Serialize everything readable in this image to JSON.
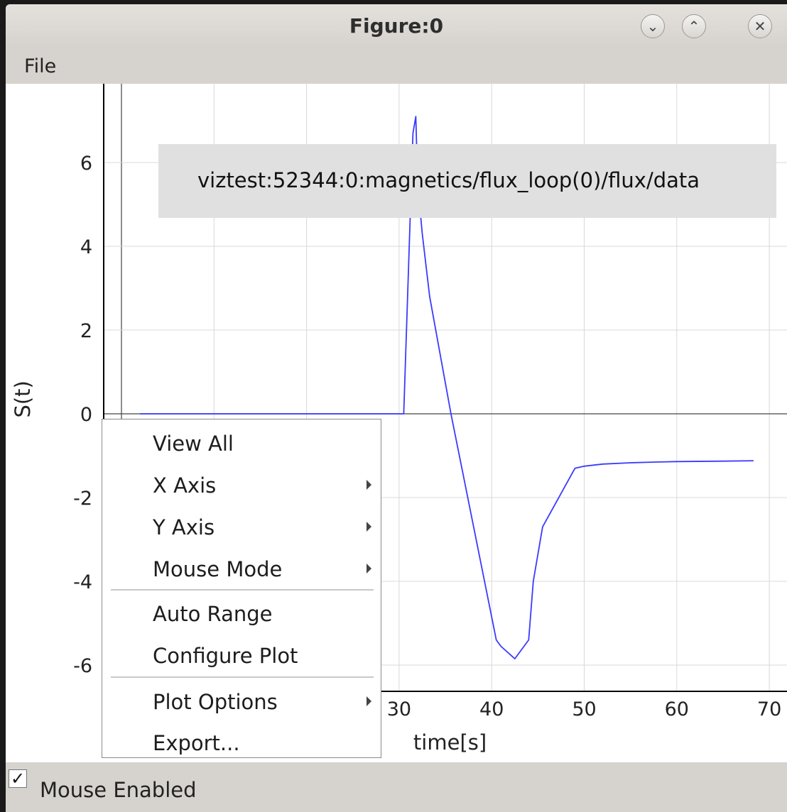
{
  "window": {
    "title": "Figure:0"
  },
  "title_buttons": {
    "minimize_glyph": "⌄",
    "maximize_glyph": "⌃",
    "close_glyph": "✕"
  },
  "menubar": {
    "file": "File"
  },
  "legend": {
    "entry": "viztest:52344:0:magnetics/flux_loop(0)/flux/data"
  },
  "context_menu": {
    "items": [
      {
        "label": "View All",
        "submenu": false
      },
      {
        "label": "X Axis",
        "submenu": true
      },
      {
        "label": "Y Axis",
        "submenu": true
      },
      {
        "label": "Mouse Mode",
        "submenu": true
      },
      {
        "label": "Auto Range",
        "submenu": false
      },
      {
        "label": "Configure Plot",
        "submenu": false
      },
      {
        "label": "Plot Options",
        "submenu": true
      },
      {
        "label": "Export...",
        "submenu": false
      }
    ]
  },
  "status": {
    "mouse_enabled_label": "Mouse Enabled",
    "mouse_enabled": true,
    "check_glyph": "✓"
  },
  "colors": {
    "line": "#3a3aff",
    "grid": "#d8d8d8",
    "axis": "#000000",
    "legend_bg": "#e0e0e0"
  },
  "chart_data": {
    "type": "line",
    "xlabel": "time[s]",
    "ylabel": "S(t)",
    "xlim": [
      0,
      72
    ],
    "ylim": [
      -6.5,
      7.7
    ],
    "x_ticks": [
      "30",
      "40",
      "50",
      "60",
      "70"
    ],
    "x_tick_values": [
      30,
      40,
      50,
      60,
      70
    ],
    "y_ticks": [
      "6",
      "4",
      "2",
      "0",
      "-2",
      "-4",
      "-6"
    ],
    "y_tick_values": [
      6,
      4,
      2,
      0,
      -2,
      -4,
      -6
    ],
    "grid": true,
    "legend_position": "top-right",
    "series": [
      {
        "name": "viztest:52344:0:magnetics/flux_loop(0)/flux/data",
        "x": [
          2,
          30,
          30.5,
          31.5,
          31.8,
          32,
          32.5,
          33.3,
          35.6,
          40.5,
          41,
          42.5,
          44,
          44.5,
          45.5,
          49,
          50,
          52,
          55,
          58,
          60,
          65,
          68.3
        ],
        "y": [
          0,
          0,
          0,
          6.7,
          7.1,
          5.5,
          4.3,
          2.8,
          0,
          -5.4,
          -5.55,
          -5.85,
          -5.4,
          -4.0,
          -2.7,
          -1.3,
          -1.25,
          -1.2,
          -1.17,
          -1.15,
          -1.14,
          -1.13,
          -1.12
        ]
      }
    ]
  }
}
